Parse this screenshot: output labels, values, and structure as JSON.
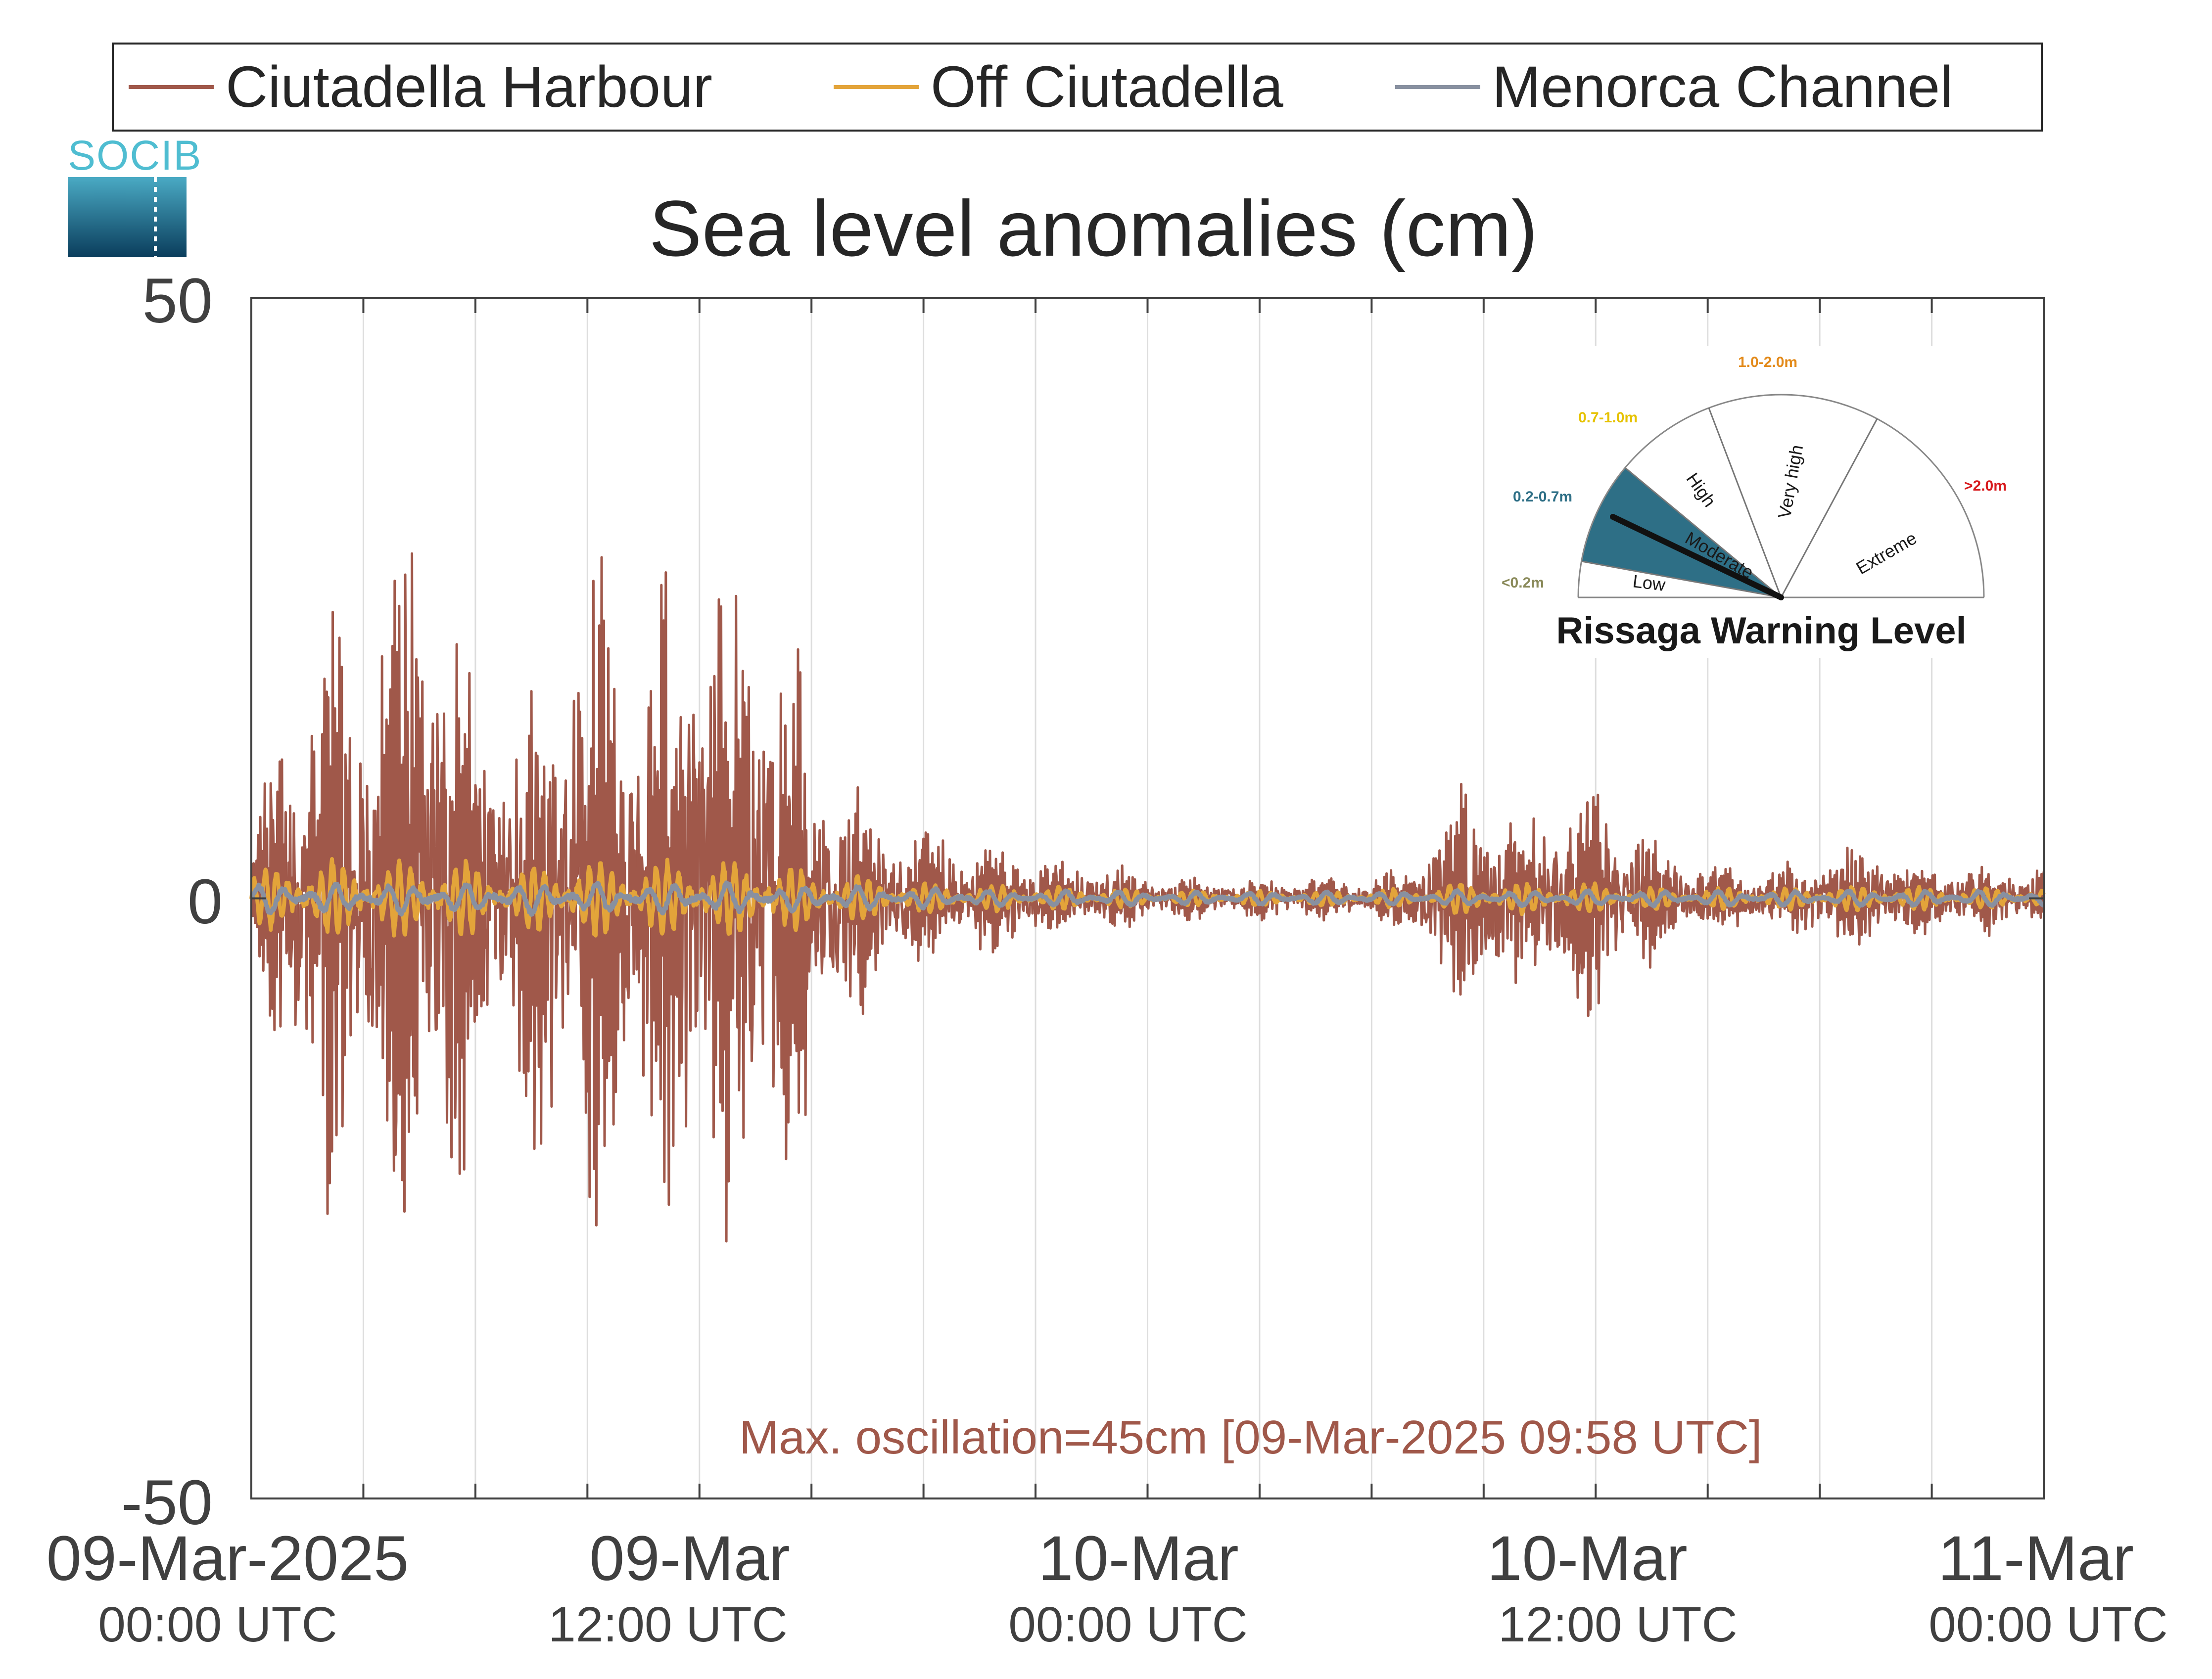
{
  "colors": {
    "harbour": "#a0584a",
    "off": "#e3a43a",
    "channel": "#8890a0",
    "gauge_fill": "#2e6f86",
    "grid": "#dddddd",
    "axis": "#404040"
  },
  "legend": [
    {
      "label": "Ciutadella Harbour",
      "color": "#a0584a"
    },
    {
      "label": "Off Ciutadella",
      "color": "#e3a43a"
    },
    {
      "label": "Menorca Channel",
      "color": "#8890a0"
    }
  ],
  "logo": {
    "text": "SOCIB"
  },
  "chart_data": {
    "type": "line",
    "title": "Sea level anomalies (cm)",
    "xlabel": "",
    "ylabel": "",
    "xlim": [
      "09-Mar-2025 00:00 UTC",
      "11-Mar-2025 00:00 UTC"
    ],
    "ylim": [
      -50,
      50
    ],
    "grid": "vertical",
    "legend_position": "top",
    "yticks": [
      "50",
      "0",
      "-50"
    ],
    "xticks": [
      {
        "date": "09-Mar-2025",
        "time": "00:00 UTC"
      },
      {
        "date": "09-Mar",
        "time": "12:00 UTC"
      },
      {
        "date": "10-Mar",
        "time": "00:00 UTC"
      },
      {
        "date": "10-Mar",
        "time": "12:00 UTC"
      },
      {
        "date": "11-Mar",
        "time": "00:00 UTC"
      }
    ],
    "x_hours": [
      0,
      1,
      2,
      3,
      4,
      5,
      6,
      7,
      8,
      9,
      10,
      11,
      12,
      13,
      14,
      15,
      16,
      17,
      18,
      19,
      20,
      21,
      22,
      23,
      24,
      25,
      26,
      27,
      28,
      29,
      30,
      31,
      32,
      33,
      34,
      35,
      36,
      37,
      38,
      39,
      40,
      41,
      42,
      43,
      44,
      45,
      46,
      47,
      48
    ],
    "series": [
      {
        "name": "Ciutadella Harbour",
        "amplitude_envelope_cm": [
          3,
          14,
          19,
          16,
          22,
          25,
          12,
          11,
          18,
          22,
          15,
          18,
          22,
          20,
          18,
          13,
          7,
          5,
          4,
          4,
          3,
          3,
          2,
          2,
          1.5,
          1.2,
          1.2,
          1.2,
          1.3,
          1.3,
          1.3,
          1.8,
          6,
          7,
          5,
          8,
          7,
          5,
          3,
          2,
          2,
          2,
          3,
          3,
          3,
          2,
          2,
          2,
          2
        ],
        "max_cm": 23,
        "min_cm": -22
      },
      {
        "name": "Off Ciutadella",
        "amplitude_envelope_cm": [
          2,
          3,
          3,
          3,
          3,
          3,
          3,
          2,
          3,
          3,
          3,
          3,
          3,
          3,
          3,
          2,
          2,
          1.5,
          1.2,
          1,
          1,
          1,
          0.8,
          0.8,
          0.6,
          0.6,
          0.6,
          0.6,
          0.6,
          0.6,
          0.6,
          0.8,
          1.2,
          1.2,
          1.2,
          1.2,
          1.2,
          1,
          0.8,
          0.8,
          0.8,
          0.8,
          1,
          1,
          1,
          0.8,
          0.8,
          0.8,
          0.8
        ]
      },
      {
        "name": "Menorca Channel",
        "amplitude_envelope_cm": [
          1.2,
          1.2,
          1.2,
          1.2,
          1.2,
          1.2,
          1.2,
          1.2,
          1.2,
          1.2,
          1.2,
          1.2,
          1.2,
          1.2,
          1,
          1,
          1,
          0.8,
          0.8,
          0.8,
          0.6,
          0.6,
          0.6,
          0.6,
          0.5,
          0.5,
          0.5,
          0.5,
          0.5,
          0.5,
          0.5,
          0.5,
          0.6,
          0.6,
          0.6,
          0.6,
          0.6,
          0.6,
          0.6,
          0.6,
          0.6,
          0.6,
          0.6,
          0.6,
          0.6,
          0.6,
          0.6,
          0.6,
          0.6
        ]
      }
    ],
    "annotation": "Max. oscillation=45cm [09-Mar-2025 09:58 UTC]"
  },
  "gauge": {
    "title": "Rissaga Warning Level",
    "current_level": "Moderate",
    "levels": [
      {
        "label": "Low",
        "range": "<0.2m",
        "range_color": "#8a8a5a"
      },
      {
        "label": "Moderate",
        "range": "0.2-0.7m",
        "range_color": "#2e6f86"
      },
      {
        "label": "High",
        "range": "0.7-1.0m",
        "range_color": "#e6c200"
      },
      {
        "label": "Very high",
        "range": "1.0-2.0m",
        "range_color": "#e38a1a"
      },
      {
        "label": "Extreme",
        "range": ">2.0m",
        "range_color": "#d7191c"
      }
    ]
  }
}
